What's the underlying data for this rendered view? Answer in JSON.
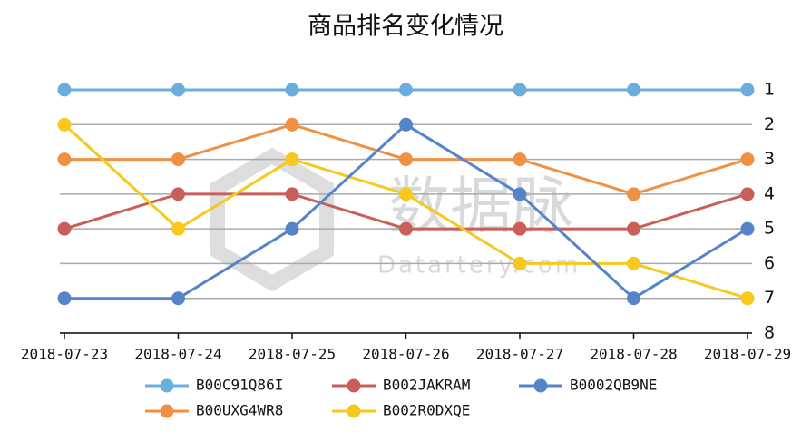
{
  "chart_data": {
    "type": "line",
    "title": "商品排名变化情况",
    "categories": [
      "2018-07-23",
      "2018-07-24",
      "2018-07-25",
      "2018-07-26",
      "2018-07-27",
      "2018-07-28",
      "2018-07-29"
    ],
    "series": [
      {
        "name": "B00C91Q86I",
        "color": "#6aaede",
        "values": [
          1,
          1,
          1,
          1,
          1,
          1,
          1
        ]
      },
      {
        "name": "B00UXG4WR8",
        "color": "#ef9042",
        "values": [
          3,
          3,
          2,
          3,
          3,
          4,
          3
        ]
      },
      {
        "name": "B002JAKRAM",
        "color": "#c95f58",
        "values": [
          5,
          4,
          4,
          5,
          5,
          5,
          4
        ]
      },
      {
        "name": "B002R0DXQE",
        "color": "#f7c81e",
        "values": [
          2,
          5,
          3,
          4,
          6,
          6,
          7
        ]
      },
      {
        "name": "B0002QB9NE",
        "color": "#5584c8",
        "values": [
          7,
          7,
          5,
          2,
          4,
          7,
          5
        ]
      }
    ],
    "ylim": [
      1,
      8
    ],
    "yticks": [
      1,
      2,
      3,
      4,
      5,
      6,
      7,
      8
    ],
    "y_inverted": true,
    "y_axis_side": "right",
    "grid": true,
    "legend": "bottom",
    "watermark": {
      "name": "数据脉",
      "site": "Datartery.com"
    }
  }
}
